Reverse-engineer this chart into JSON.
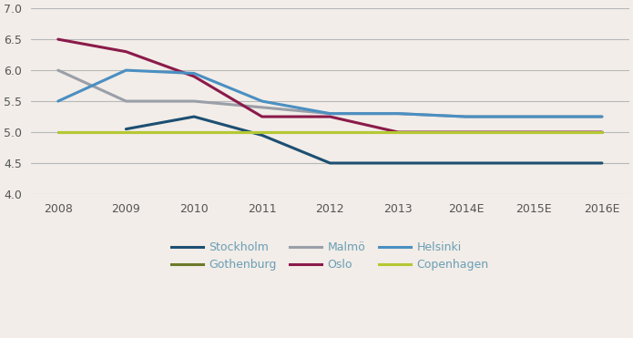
{
  "x_labels": [
    "2008",
    "2009",
    "2010",
    "2011",
    "2012",
    "2013",
    "2014E",
    "2015E",
    "2016E"
  ],
  "series": {
    "Stockholm": {
      "values": [
        null,
        5.05,
        5.25,
        4.95,
        4.5,
        4.5,
        4.5,
        4.5,
        4.5
      ],
      "color": "#1d4f72",
      "linewidth": 2.2
    },
    "Gothenburg": {
      "values": [
        5.0,
        5.0,
        5.0,
        5.0,
        5.0,
        5.0,
        5.0,
        5.0,
        5.0
      ],
      "color": "#6b7a2a",
      "linewidth": 2.2
    },
    "Malmö": {
      "values": [
        6.0,
        5.5,
        5.5,
        5.4,
        5.3,
        5.3,
        5.25,
        5.25,
        5.25
      ],
      "color": "#9a9fa8",
      "linewidth": 2.2
    },
    "Oslo": {
      "values": [
        6.5,
        6.3,
        5.9,
        5.25,
        5.25,
        5.0,
        5.0,
        5.0,
        5.0
      ],
      "color": "#8b1a4a",
      "linewidth": 2.2
    },
    "Helsinki": {
      "values": [
        5.5,
        6.0,
        5.95,
        5.5,
        5.3,
        5.3,
        5.25,
        5.25,
        5.25
      ],
      "color": "#4a8fc2",
      "linewidth": 2.2
    },
    "Copenhagen": {
      "values": [
        5.0,
        5.0,
        5.0,
        5.0,
        5.0,
        5.0,
        5.0,
        5.0,
        5.0
      ],
      "color": "#b5c832",
      "linewidth": 2.2
    }
  },
  "ylim": [
    4.0,
    7.0
  ],
  "yticks": [
    4.0,
    4.5,
    5.0,
    5.5,
    6.0,
    6.5,
    7.0
  ],
  "background_color": "#f2ede8",
  "grid_color": "#b8b8b8",
  "legend_order": [
    "Stockholm",
    "Gothenburg",
    "Malmö",
    "Oslo",
    "Helsinki",
    "Copenhagen"
  ],
  "legend_text_color": "#6a9eb5"
}
